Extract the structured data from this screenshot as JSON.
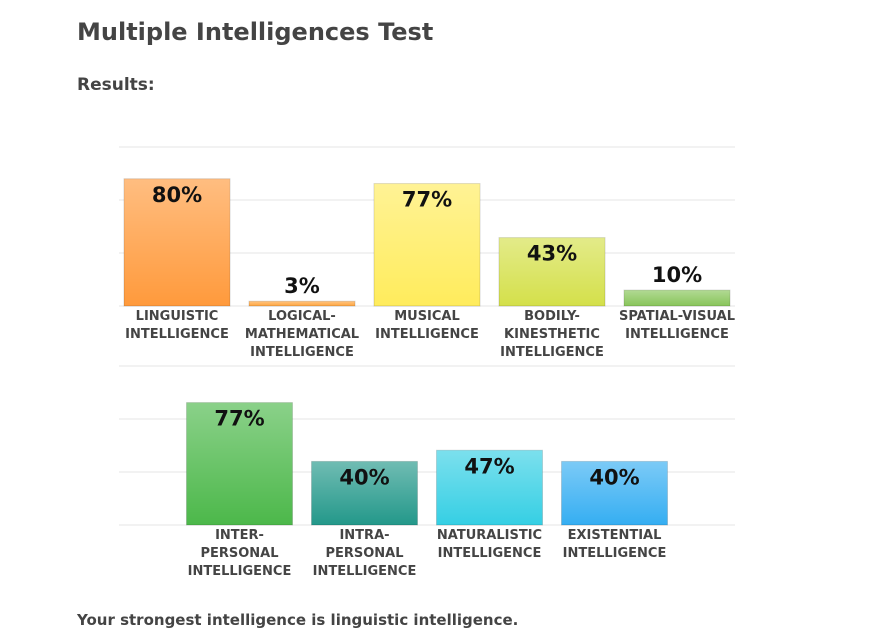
{
  "header": {
    "title": "Multiple Intelligences Test",
    "subtitle": "Results:"
  },
  "chart_data": [
    {
      "type": "bar",
      "ylim": [
        0,
        100
      ],
      "grid": true,
      "categories": [
        "LINGUISTIC INTELLIGENCE",
        "LOGICAL-MATHEMATICAL INTELLIGENCE",
        "MUSICAL INTELLIGENCE",
        "BODILY-KINESTHETIC INTELLIGENCE",
        "SPATIAL-VISUAL INTELLIGENCE"
      ],
      "values": [
        80,
        3,
        77,
        43,
        10
      ],
      "value_labels": [
        "80%",
        "3%",
        "77%",
        "43%",
        "10%"
      ],
      "colors": [
        "#ff9a3c",
        "#ffa53f",
        "#ffec5c",
        "#d4e04a",
        "#88c55a"
      ]
    },
    {
      "type": "bar",
      "ylim": [
        0,
        100
      ],
      "grid": true,
      "categories": [
        "INTER-PERSONAL INTELLIGENCE",
        "INTRA-PERSONAL INTELLIGENCE",
        "NATURALISTIC INTELLIGENCE",
        "EXISTENTIAL INTELLIGENCE"
      ],
      "values": [
        77,
        40,
        47,
        40
      ],
      "value_labels": [
        "77%",
        "40%",
        "47%",
        "40%"
      ],
      "colors": [
        "#4cb84a",
        "#23988a",
        "#35cfe4",
        "#35aef2"
      ]
    }
  ],
  "footer": {
    "text": "Your strongest intelligence is linguistic intelligence."
  }
}
